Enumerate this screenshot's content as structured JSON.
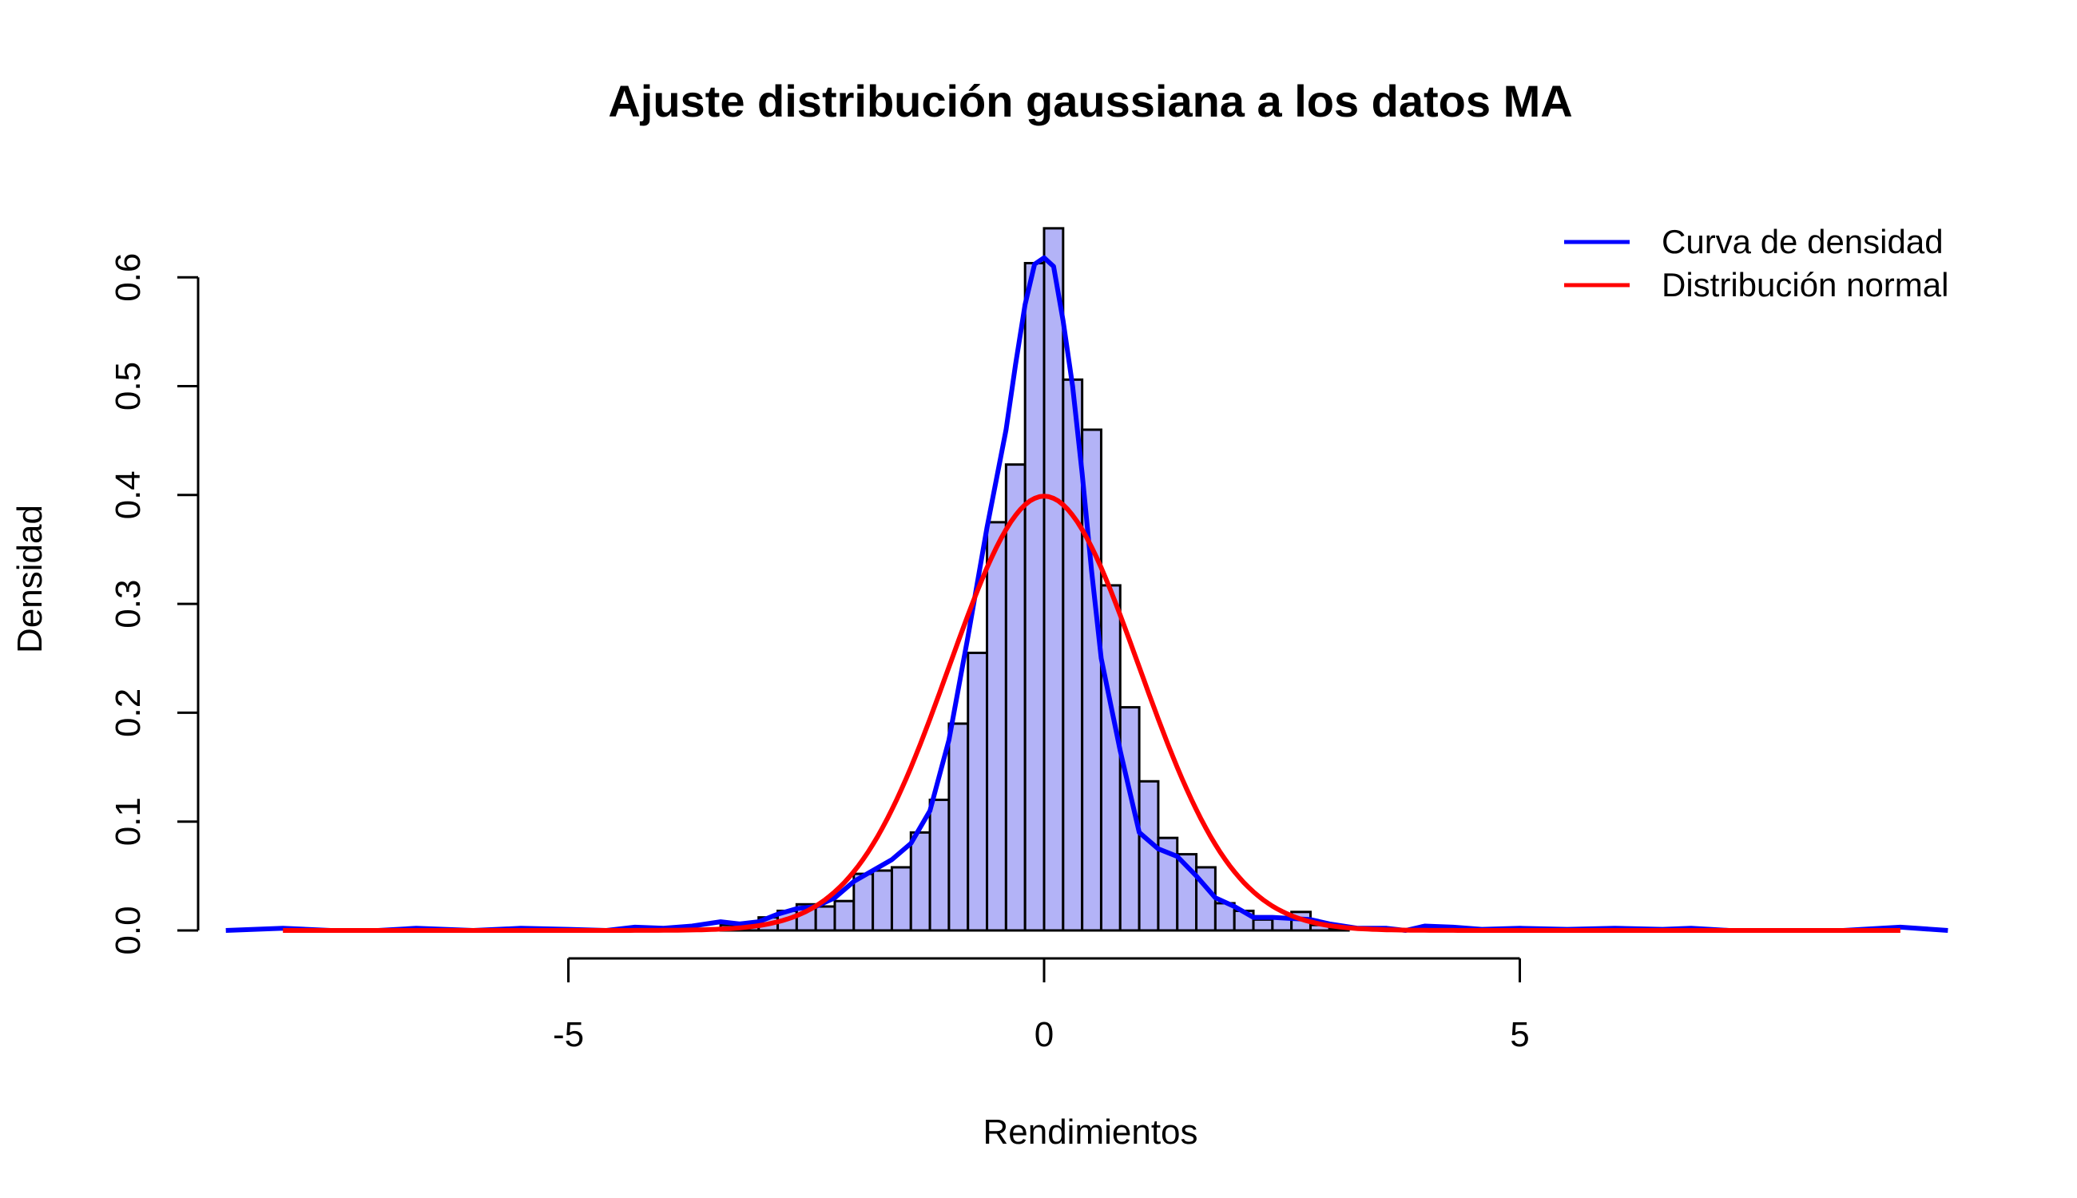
{
  "chart_data": {
    "type": "bar",
    "title": "Ajuste distribución gaussiana a los datos MA",
    "xlabel": "Rendimientos",
    "ylabel": "Densidad",
    "xlim": [
      -9,
      9.5
    ],
    "ylim": [
      0,
      0.65
    ],
    "x_ticks": [
      -5,
      0,
      5
    ],
    "x_tick_labels": [
      "-5",
      "0",
      "5"
    ],
    "y_ticks": [
      0.0,
      0.1,
      0.2,
      0.3,
      0.4,
      0.5,
      0.6
    ],
    "y_tick_labels": [
      "0.0",
      "0.1",
      "0.2",
      "0.3",
      "0.4",
      "0.5",
      "0.6"
    ],
    "grid": false,
    "legend_position": "top-right",
    "histogram": {
      "fill_color": "#b3b3f7",
      "edge_color": "#000000",
      "bin_edges": [
        -3.4,
        -3.2,
        -3.0,
        -2.8,
        -2.6,
        -2.4,
        -2.2,
        -2.0,
        -1.8,
        -1.6,
        -1.4,
        -1.2,
        -1.0,
        -0.8,
        -0.6,
        -0.4,
        -0.2,
        0.0,
        0.2,
        0.4,
        0.6,
        0.8,
        1.0,
        1.2,
        1.4,
        1.6,
        1.8,
        2.0,
        2.2,
        2.4,
        2.6,
        2.8,
        3.0,
        3.2
      ],
      "densities": [
        0.005,
        0.007,
        0.012,
        0.018,
        0.024,
        0.022,
        0.027,
        0.052,
        0.055,
        0.058,
        0.09,
        0.12,
        0.19,
        0.255,
        0.375,
        0.428,
        0.613,
        0.645,
        0.506,
        0.46,
        0.317,
        0.205,
        0.137,
        0.085,
        0.07,
        0.058,
        0.025,
        0.018,
        0.01,
        0.012,
        0.017,
        0.005,
        0.002
      ]
    },
    "series": [
      {
        "name": "Curva de densidad",
        "color": "#0000ff",
        "x": [
          -8.6,
          -8.0,
          -7.5,
          -7.0,
          -6.6,
          -6.0,
          -5.5,
          -5.0,
          -4.6,
          -4.3,
          -4.0,
          -3.7,
          -3.4,
          -3.2,
          -3.0,
          -2.8,
          -2.6,
          -2.4,
          -2.2,
          -2.0,
          -1.8,
          -1.6,
          -1.4,
          -1.2,
          -1.0,
          -0.8,
          -0.6,
          -0.4,
          -0.3,
          -0.2,
          -0.1,
          0.0,
          0.1,
          0.2,
          0.3,
          0.4,
          0.5,
          0.6,
          0.8,
          1.0,
          1.2,
          1.4,
          1.6,
          1.8,
          2.0,
          2.2,
          2.4,
          2.6,
          2.8,
          3.0,
          3.3,
          3.6,
          3.8,
          4.0,
          4.3,
          4.6,
          5.0,
          5.5,
          6.0,
          6.5,
          6.8,
          7.2,
          7.8,
          8.4,
          9.0,
          9.5
        ],
        "y": [
          0.0,
          0.002,
          0.0,
          0.0,
          0.002,
          0.0,
          0.002,
          0.001,
          0.0,
          0.003,
          0.002,
          0.004,
          0.008,
          0.006,
          0.008,
          0.015,
          0.02,
          0.022,
          0.03,
          0.045,
          0.055,
          0.065,
          0.08,
          0.11,
          0.175,
          0.27,
          0.37,
          0.46,
          0.52,
          0.575,
          0.612,
          0.618,
          0.61,
          0.56,
          0.5,
          0.42,
          0.33,
          0.25,
          0.165,
          0.09,
          0.075,
          0.068,
          0.05,
          0.03,
          0.022,
          0.012,
          0.012,
          0.011,
          0.01,
          0.006,
          0.002,
          0.002,
          0.0,
          0.004,
          0.003,
          0.001,
          0.002,
          0.001,
          0.002,
          0.001,
          0.002,
          0.0,
          0.0,
          0.0,
          0.003,
          0.0
        ]
      },
      {
        "name": "Distribución normal",
        "color": "#ff0000",
        "mean": 0,
        "sd": 1,
        "x_range": [
          -8,
          9
        ]
      }
    ]
  }
}
